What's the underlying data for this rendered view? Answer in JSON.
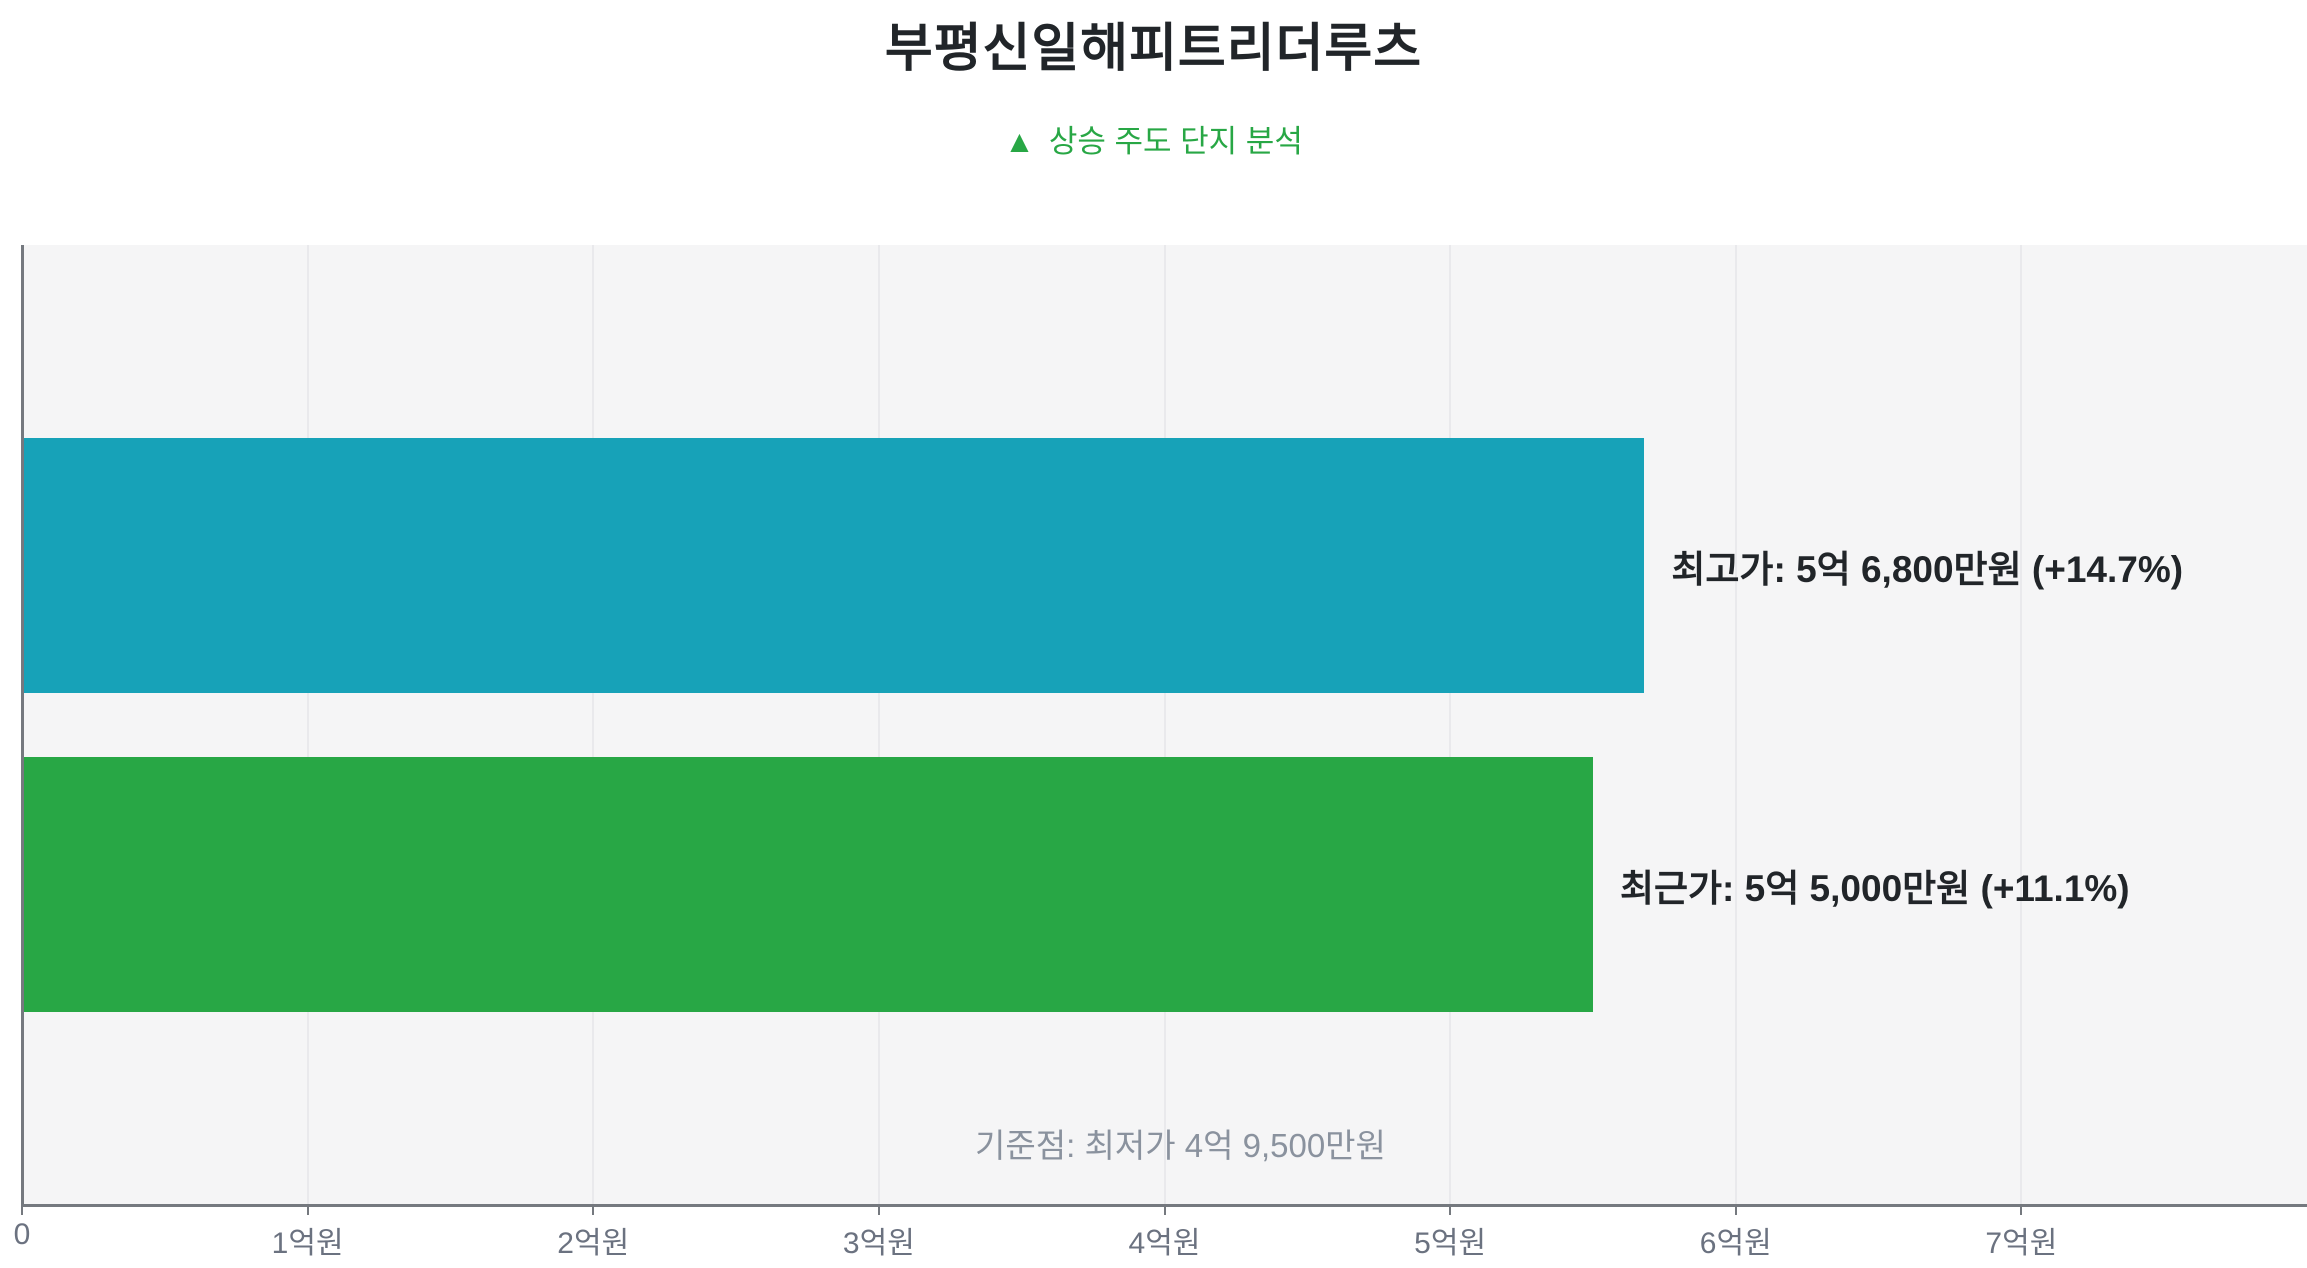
{
  "chart_data": {
    "type": "bar",
    "orientation": "horizontal",
    "title": "부평신일해피트리더루츠",
    "subtitle_icon": "▲",
    "subtitle": "상승 주도 단지 분석",
    "subtitle_color": "#28a745",
    "unit": "억원",
    "bars": [
      {
        "id": "highest-price",
        "name": "최고가",
        "value_eok": 5.68,
        "price_label": "5억 6,800만원",
        "change_pct": "+14.7%",
        "label": "최고가: 5억 6,800만원 (+14.7%)",
        "color": "#17a2b8"
      },
      {
        "id": "recent-price",
        "name": "최근가",
        "value_eok": 5.5,
        "price_label": "5억 5,000만원",
        "change_pct": "+11.1%",
        "label": "최근가: 5억 5,000만원 (+11.1%)",
        "color": "#28a745"
      }
    ],
    "baseline": {
      "label": "기준점: 최저가 4억 9,500만원",
      "name": "최저가",
      "price_label": "4억 9,500만원",
      "value_eok": 4.95
    },
    "x_axis": {
      "max_eok": 8,
      "ticks": [
        {
          "label": "0",
          "value": 0
        },
        {
          "label": "1억원",
          "value": 1
        },
        {
          "label": "2억원",
          "value": 2
        },
        {
          "label": "3억원",
          "value": 3
        },
        {
          "label": "4억원",
          "value": 4
        },
        {
          "label": "5억원",
          "value": 5
        },
        {
          "label": "6억원",
          "value": 6
        },
        {
          "label": "7억원",
          "value": 7
        }
      ]
    },
    "grid": "vertical-on",
    "legend": "none",
    "colors": {
      "plot_bg": "#f5f5f6",
      "grid_color": "#e9e9ec",
      "axis_color": "#75797f",
      "tick_label_color": "#6b7280",
      "bar_label_color": "#212529",
      "title_color": "#212529",
      "annotation_color": "#8a929e"
    }
  }
}
